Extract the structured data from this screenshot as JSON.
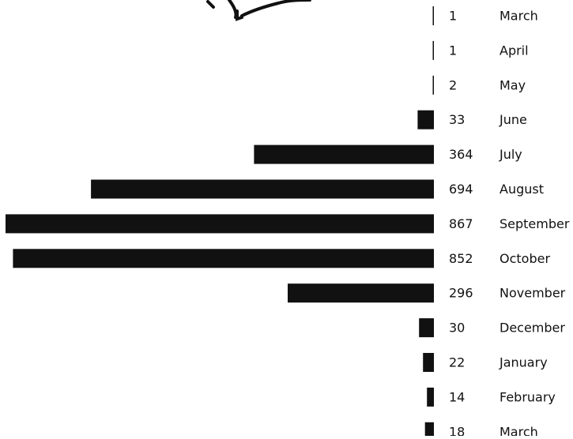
{
  "chart_data": {
    "type": "bar",
    "orientation": "horizontal",
    "categories": [
      "March",
      "April",
      "May",
      "June",
      "July",
      "August",
      "September",
      "October",
      "November",
      "December",
      "January",
      "February",
      "March"
    ],
    "values": [
      1,
      1,
      2,
      33,
      364,
      694,
      867,
      852,
      296,
      30,
      22,
      14,
      18
    ],
    "bar_color": "#111111",
    "grid": false,
    "legend": "none"
  }
}
